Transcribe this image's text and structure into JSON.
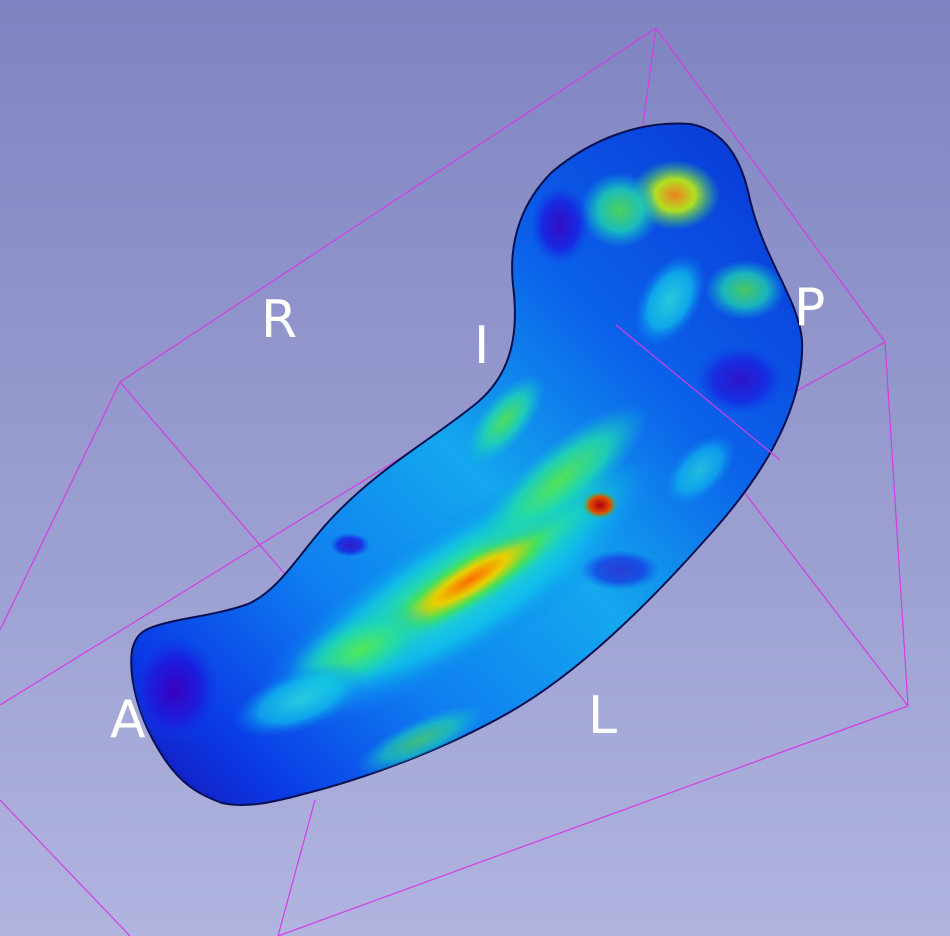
{
  "viewer": {
    "background_top": "#7f84c2",
    "background_bottom": "#b1b4df",
    "box_color": "#d43ce6"
  },
  "orientation_labels": {
    "right": "R",
    "inferior": "I",
    "posterior": "P",
    "anterior": "A",
    "left": "L"
  },
  "model": {
    "description_icon": "curved-surface-model-icon",
    "colormap": [
      "#2a00c8",
      "#0040ff",
      "#00a0ff",
      "#00e0d0",
      "#40f040",
      "#c0f000",
      "#ff8000",
      "#c00000"
    ]
  }
}
